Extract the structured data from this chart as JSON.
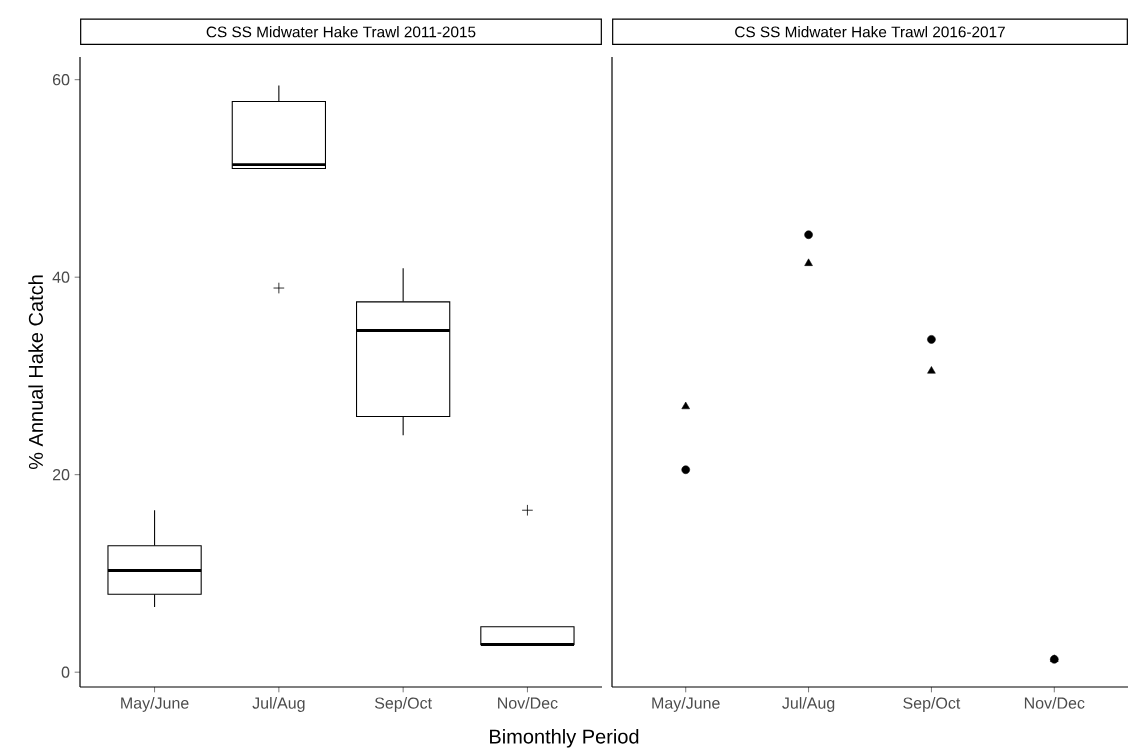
{
  "chart_data": [
    {
      "type": "box",
      "title": "CS SS Midwater Hake Trawl 2011-2015",
      "xlabel": "Bimonthly Period",
      "ylabel": "% Annual Hake Catch",
      "categories": [
        "May/June",
        "Jul/Aug",
        "Sep/Oct",
        "Nov/Dec"
      ],
      "color": "#000000",
      "boxes": [
        {
          "low": 6.6,
          "q1": 7.9,
          "median": 10.3,
          "q3": 12.8,
          "high": 16.4
        },
        {
          "low": 51.0,
          "q1": 51.0,
          "median": 51.4,
          "q3": 57.8,
          "high": 59.4,
          "outliers": [
            38.9
          ]
        },
        {
          "low": 24.0,
          "q1": 25.9,
          "median": 34.6,
          "q3": 37.5,
          "high": 40.9
        },
        {
          "low": 2.8,
          "q1": 2.8,
          "median": 2.8,
          "q3": 4.6,
          "high": 4.6,
          "outliers": [
            16.4
          ]
        }
      ],
      "ylim": [
        -1.5,
        62.3
      ],
      "yticks": [
        0,
        20,
        40,
        60
      ]
    },
    {
      "type": "scatter",
      "title": "CS SS Midwater Hake Trawl 2016-2017",
      "categories": [
        "May/June",
        "Jul/Aug",
        "Sep/Oct",
        "Nov/Dec"
      ],
      "series": [
        {
          "color": "#000000",
          "marker": "circle",
          "values": [
            20.5,
            44.3,
            33.7,
            1.3
          ]
        },
        {
          "color": "#000000",
          "marker": "triangle",
          "values": [
            26.9,
            41.4,
            30.5,
            1.3
          ]
        }
      ],
      "ylim": [
        -1.5,
        62.3
      ],
      "yticks": [
        0,
        20,
        40,
        60
      ],
      "tick_labels": "x"
    }
  ]
}
